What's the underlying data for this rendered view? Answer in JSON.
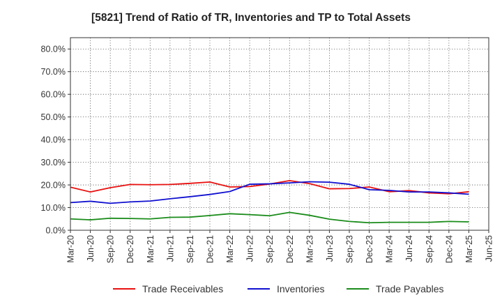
{
  "chart_data": {
    "type": "line",
    "title": "[5821]  Trend of Ratio of TR, Inventories and TP to Total Assets",
    "xlabel": "",
    "ylabel": "",
    "ylim": [
      0,
      85
    ],
    "yticks": [
      0,
      10,
      20,
      30,
      40,
      50,
      60,
      70,
      80
    ],
    "ytick_labels": [
      "0.0%",
      "10.0%",
      "20.0%",
      "30.0%",
      "40.0%",
      "50.0%",
      "60.0%",
      "70.0%",
      "80.0%"
    ],
    "x": [
      "Mar-20",
      "Jun-20",
      "Sep-20",
      "Dec-20",
      "Mar-21",
      "Jun-21",
      "Sep-21",
      "Dec-21",
      "Mar-22",
      "Jun-22",
      "Sep-22",
      "Dec-22",
      "Mar-23",
      "Jun-23",
      "Sep-23",
      "Dec-23",
      "Mar-24",
      "Jun-24",
      "Sep-24",
      "Dec-24",
      "Mar-25",
      "Jun-25"
    ],
    "grid": true,
    "legend_position": "bottom",
    "series": [
      {
        "name": "Trade Receivables",
        "color": "#e8100f",
        "values": [
          19.0,
          16.9,
          18.8,
          20.2,
          20.1,
          20.2,
          20.7,
          21.3,
          19.1,
          19.3,
          20.4,
          21.9,
          20.6,
          18.3,
          18.4,
          19.1,
          17.0,
          17.5,
          16.5,
          16.1,
          17.0,
          null
        ]
      },
      {
        "name": "Inventories",
        "color": "#1010d0",
        "values": [
          12.2,
          12.8,
          11.9,
          12.5,
          12.9,
          13.9,
          14.8,
          15.8,
          17.1,
          20.3,
          20.5,
          20.9,
          21.4,
          21.2,
          20.3,
          17.9,
          17.6,
          16.9,
          16.9,
          16.5,
          15.9,
          null
        ]
      },
      {
        "name": "Trade Payables",
        "color": "#1a8c1a",
        "values": [
          5.0,
          4.6,
          5.3,
          5.2,
          5.0,
          5.7,
          5.8,
          6.5,
          7.3,
          6.9,
          6.4,
          7.9,
          6.6,
          4.9,
          3.9,
          3.3,
          3.5,
          3.5,
          3.5,
          3.9,
          3.7,
          null
        ]
      }
    ]
  }
}
